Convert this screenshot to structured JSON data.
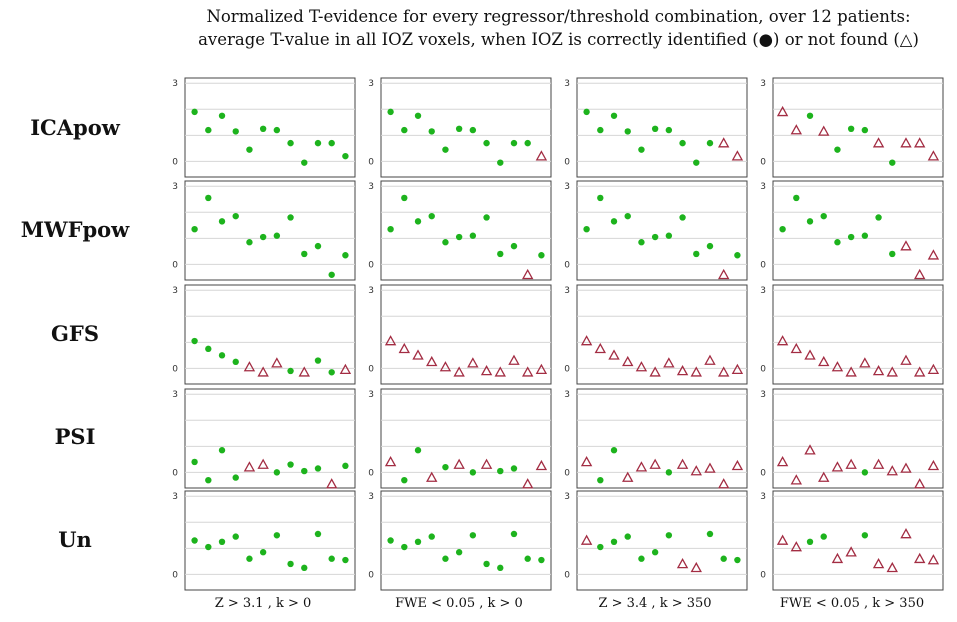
{
  "chart_data": {
    "type": "scatter",
    "title_line1": "Normalized T-evidence for every regressor/threshold combination, over 12 patients:",
    "title_line2": "average T-value in all IOZ voxels, when IOZ is correctly identified (●) or not found (△)",
    "rows": [
      "ICApow",
      "MWFpow",
      "GFS",
      "PSI",
      "Un"
    ],
    "columns": [
      "Z > 3.1 , k > 0",
      "FWE < 0.05 , k > 0",
      "Z > 3.4 , k > 350",
      "FWE < 0.05 , k > 350"
    ],
    "x": [
      1,
      2,
      3,
      4,
      5,
      6,
      7,
      8,
      9,
      10,
      11,
      12
    ],
    "xlim": [
      0.3,
      12.7
    ],
    "ylim": [
      -0.6,
      3.2
    ],
    "yticks": [
      0,
      3
    ],
    "gridlines": [
      0,
      1,
      2,
      3
    ],
    "colors": {
      "found": "#1db31d",
      "not_found": "#a32d43"
    },
    "marker_legend": {
      "found": "filled circle",
      "not_found": "open triangle"
    },
    "values": {
      "ICApow": [
        1.9,
        1.2,
        1.75,
        1.15,
        0.45,
        1.25,
        1.2,
        0.7,
        -0.05,
        0.7,
        0.7,
        0.2
      ],
      "MWFpow": [
        1.35,
        2.55,
        1.65,
        1.85,
        0.85,
        1.05,
        1.1,
        1.8,
        0.4,
        0.7,
        -0.4,
        0.35
      ],
      "GFS": [
        1.05,
        0.75,
        0.5,
        0.25,
        0.05,
        -0.15,
        0.2,
        -0.1,
        -0.15,
        0.3,
        -0.15,
        -0.05
      ],
      "PSI": [
        0.4,
        -0.3,
        0.85,
        -0.2,
        0.2,
        0.3,
        0.0,
        0.3,
        0.05,
        0.15,
        -0.45,
        0.25
      ],
      "Un": [
        1.3,
        1.05,
        1.25,
        1.45,
        0.6,
        0.85,
        1.5,
        0.4,
        0.25,
        1.55,
        0.6,
        0.55
      ]
    },
    "found": {
      "ICApow": [
        [
          1,
          1,
          1,
          1,
          1,
          1,
          1,
          1,
          1,
          1,
          1,
          1
        ],
        [
          1,
          1,
          1,
          1,
          1,
          1,
          1,
          1,
          1,
          1,
          1,
          0
        ],
        [
          1,
          1,
          1,
          1,
          1,
          1,
          1,
          1,
          1,
          1,
          0,
          0
        ],
        [
          0,
          0,
          1,
          0,
          1,
          1,
          1,
          0,
          1,
          0,
          0,
          0
        ]
      ],
      "MWFpow": [
        [
          1,
          1,
          1,
          1,
          1,
          1,
          1,
          1,
          1,
          1,
          1,
          1
        ],
        [
          1,
          1,
          1,
          1,
          1,
          1,
          1,
          1,
          1,
          1,
          0,
          1
        ],
        [
          1,
          1,
          1,
          1,
          1,
          1,
          1,
          1,
          1,
          1,
          0,
          1
        ],
        [
          1,
          1,
          1,
          1,
          1,
          1,
          1,
          1,
          1,
          0,
          0,
          0
        ]
      ],
      "GFS": [
        [
          1,
          1,
          1,
          1,
          0,
          0,
          0,
          1,
          0,
          1,
          1,
          0
        ],
        [
          0,
          0,
          0,
          0,
          0,
          0,
          0,
          0,
          0,
          0,
          0,
          0
        ],
        [
          0,
          0,
          0,
          0,
          0,
          0,
          0,
          0,
          0,
          0,
          0,
          0
        ],
        [
          0,
          0,
          0,
          0,
          0,
          0,
          0,
          0,
          0,
          0,
          0,
          0
        ]
      ],
      "PSI": [
        [
          1,
          1,
          1,
          1,
          0,
          0,
          1,
          1,
          1,
          1,
          0,
          1
        ],
        [
          0,
          1,
          1,
          0,
          1,
          0,
          1,
          0,
          1,
          1,
          0,
          0
        ],
        [
          0,
          1,
          1,
          0,
          0,
          0,
          1,
          0,
          0,
          0,
          0,
          0
        ],
        [
          0,
          0,
          0,
          0,
          0,
          0,
          1,
          0,
          0,
          0,
          0,
          0
        ]
      ],
      "Un": [
        [
          1,
          1,
          1,
          1,
          1,
          1,
          1,
          1,
          1,
          1,
          1,
          1
        ],
        [
          1,
          1,
          1,
          1,
          1,
          1,
          1,
          1,
          1,
          1,
          1,
          1
        ],
        [
          0,
          1,
          1,
          1,
          1,
          1,
          1,
          0,
          0,
          1,
          1,
          1
        ],
        [
          0,
          0,
          1,
          1,
          0,
          0,
          1,
          0,
          0,
          0,
          0,
          0
        ]
      ]
    }
  }
}
